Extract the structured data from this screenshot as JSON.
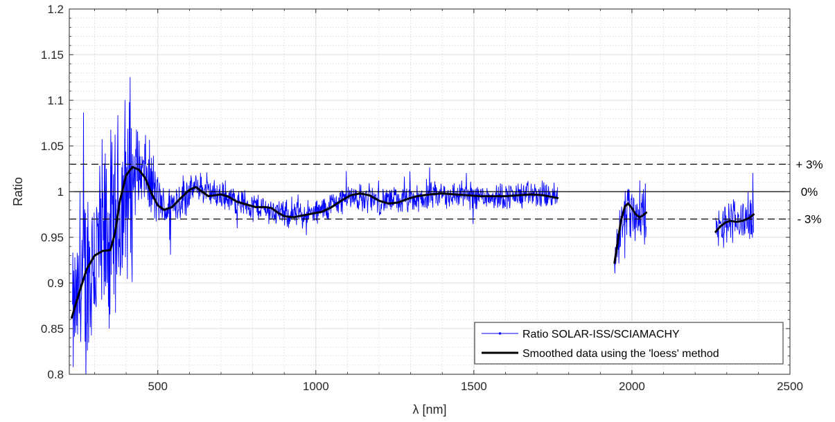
{
  "chart_data": {
    "type": "line",
    "title": "",
    "xlabel": "λ [nm]",
    "ylabel": "Ratio",
    "xlim": [
      220,
      2500
    ],
    "ylim": [
      0.8,
      1.2
    ],
    "x_ticks": [
      500,
      1000,
      1500,
      2000,
      2500
    ],
    "y_ticks": [
      0.8,
      0.85,
      0.9,
      0.95,
      1,
      1.05,
      1.1,
      1.15,
      1.2
    ],
    "x_tick_labels": [
      "500",
      "1000",
      "1500",
      "2000",
      "2500"
    ],
    "y_tick_labels": [
      "0.8",
      "0.85",
      "0.9",
      "0.95",
      "1",
      "1.05",
      "1.1",
      "1.15",
      "1.2"
    ],
    "grid": true,
    "minor_grid": true,
    "legend_position": "bottom-right",
    "reference_lines": [
      {
        "y": 1.03,
        "style": "dashed",
        "label": "+ 3%"
      },
      {
        "y": 1.0,
        "style": "solid",
        "label": "0%"
      },
      {
        "y": 0.97,
        "style": "dashed",
        "label": "- 3%"
      }
    ],
    "series": [
      {
        "name": "Ratio SOLAR-ISS/SCIAMACHY",
        "color": "#0000ff",
        "marker": "dot",
        "segments": [
          {
            "x_range": [
              230,
              1765
            ],
            "trend": [
              [
                230,
                0.86
              ],
              [
                300,
                0.93
              ],
              [
                360,
                0.95
              ],
              [
                420,
                1.02
              ],
              [
                460,
                1.02
              ],
              [
                520,
                0.98
              ],
              [
                620,
                1.005
              ],
              [
                700,
                0.995
              ],
              [
                800,
                0.985
              ],
              [
                900,
                0.975
              ],
              [
                1000,
                0.976
              ],
              [
                1100,
                0.995
              ],
              [
                1200,
                0.99
              ],
              [
                1300,
                0.99
              ],
              [
                1400,
                0.997
              ],
              [
                1500,
                0.996
              ],
              [
                1600,
                0.995
              ],
              [
                1700,
                0.997
              ],
              [
                1765,
                0.994
              ]
            ]
          },
          {
            "x_range": [
              1945,
              2045
            ],
            "trend": [
              [
                1945,
                0.925
              ],
              [
                1965,
                0.96
              ],
              [
                1985,
                0.987
              ],
              [
                2005,
                0.978
              ],
              [
                2025,
                0.972
              ],
              [
                2045,
                0.977
              ]
            ]
          },
          {
            "x_range": [
              2265,
              2385
            ],
            "trend": [
              [
                2265,
                0.955
              ],
              [
                2290,
                0.962
              ],
              [
                2310,
                0.968
              ],
              [
                2340,
                0.967
              ],
              [
                2365,
                0.97
              ],
              [
                2385,
                0.975
              ]
            ]
          }
        ]
      },
      {
        "name": "Smoothed data using the 'loess' method",
        "color": "#000000",
        "segments": [
          [
            [
              228,
              0.862
            ],
            [
              250,
              0.888
            ],
            [
              275,
              0.915
            ],
            [
              300,
              0.93
            ],
            [
              325,
              0.935
            ],
            [
              350,
              0.936
            ],
            [
              365,
              0.955
            ],
            [
              380,
              0.99
            ],
            [
              400,
              1.018
            ],
            [
              420,
              1.027
            ],
            [
              440,
              1.024
            ],
            [
              460,
              1.015
            ],
            [
              480,
              0.998
            ],
            [
              500,
              0.985
            ],
            [
              520,
              0.98
            ],
            [
              545,
              0.983
            ],
            [
              570,
              0.992
            ],
            [
              600,
              1.002
            ],
            [
              620,
              1.005
            ],
            [
              640,
              1.0
            ],
            [
              660,
              0.995
            ],
            [
              680,
              0.996
            ],
            [
              700,
              0.997
            ],
            [
              720,
              0.995
            ],
            [
              750,
              0.989
            ],
            [
              780,
              0.986
            ],
            [
              810,
              0.983
            ],
            [
              840,
              0.983
            ],
            [
              860,
              0.982
            ],
            [
              880,
              0.977
            ],
            [
              900,
              0.973
            ],
            [
              930,
              0.972
            ],
            [
              960,
              0.974
            ],
            [
              990,
              0.976
            ],
            [
              1020,
              0.978
            ],
            [
              1050,
              0.983
            ],
            [
              1080,
              0.99
            ],
            [
              1110,
              0.996
            ],
            [
              1140,
              0.998
            ],
            [
              1170,
              0.996
            ],
            [
              1200,
              0.99
            ],
            [
              1230,
              0.987
            ],
            [
              1260,
              0.988
            ],
            [
              1290,
              0.992
            ],
            [
              1320,
              0.995
            ],
            [
              1360,
              0.997
            ],
            [
              1400,
              0.998
            ],
            [
              1440,
              0.997
            ],
            [
              1480,
              0.996
            ],
            [
              1520,
              0.995
            ],
            [
              1560,
              0.995
            ],
            [
              1600,
              0.995
            ],
            [
              1640,
              0.996
            ],
            [
              1680,
              0.997
            ],
            [
              1720,
              0.996
            ],
            [
              1765,
              0.993
            ]
          ],
          [
            [
              1945,
              0.922
            ],
            [
              1955,
              0.945
            ],
            [
              1965,
              0.968
            ],
            [
              1978,
              0.984
            ],
            [
              1988,
              0.987
            ],
            [
              2000,
              0.982
            ],
            [
              2012,
              0.975
            ],
            [
              2025,
              0.972
            ],
            [
              2035,
              0.974
            ],
            [
              2045,
              0.977
            ]
          ],
          [
            [
              2265,
              0.956
            ],
            [
              2280,
              0.962
            ],
            [
              2295,
              0.966
            ],
            [
              2310,
              0.968
            ],
            [
              2330,
              0.967
            ],
            [
              2350,
              0.968
            ],
            [
              2370,
              0.971
            ],
            [
              2385,
              0.975
            ]
          ]
        ]
      }
    ]
  }
}
